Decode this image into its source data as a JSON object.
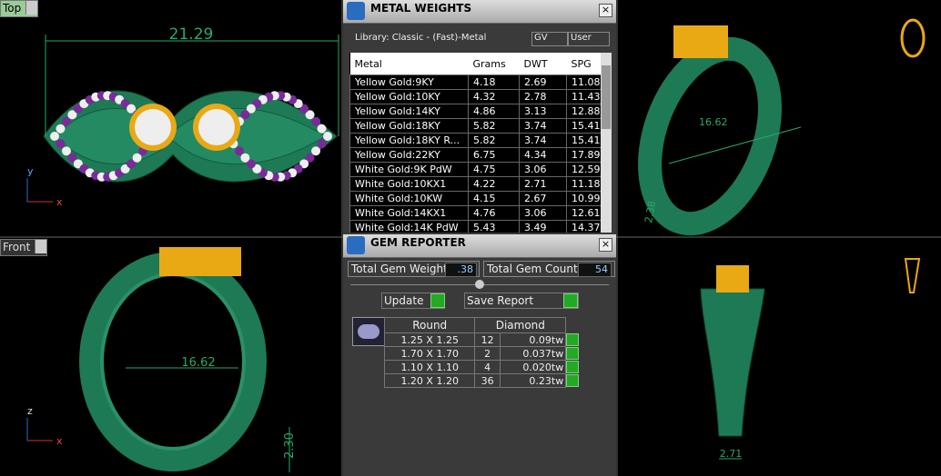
{
  "viewports": {
    "top_label": "Top",
    "front_label": "Front",
    "top_dimension": "21.29",
    "front_dimension": "16.62",
    "front_height": "2.30",
    "perspective_dimension": "16.62",
    "perspective_height": "2.38",
    "side_dimension": "2.71",
    "axis_y": "y",
    "axis_x": "x",
    "axis_z": "z"
  },
  "metal_weights": {
    "title": "METAL WEIGHTS",
    "library": "Library: Classic - (Fast)-Metal",
    "toggles": [
      "GV",
      "User"
    ],
    "columns": [
      "Metal",
      "Grams",
      "DWT",
      "SPG"
    ],
    "rows": [
      [
        "Yellow Gold:9KY",
        "4.18",
        "2.69",
        "11.08"
      ],
      [
        "Yellow Gold:10KY",
        "4.32",
        "2.78",
        "11.43"
      ],
      [
        "Yellow Gold:14KY",
        "4.86",
        "3.13",
        "12.88"
      ],
      [
        "Yellow Gold:18KY",
        "5.82",
        "3.74",
        "15.41"
      ],
      [
        "Yellow Gold:18KY R...",
        "5.82",
        "3.74",
        "15.41"
      ],
      [
        "Yellow Gold:22KY",
        "6.75",
        "4.34",
        "17.89"
      ],
      [
        "White Gold:9K PdW",
        "4.75",
        "3.06",
        "12.59"
      ],
      [
        "White Gold:10KX1",
        "4.22",
        "2.71",
        "11.18"
      ],
      [
        "White Gold:10KW",
        "4.15",
        "2.67",
        "10.99"
      ],
      [
        "White Gold:14KX1",
        "4.76",
        "3.06",
        "12.61"
      ],
      [
        "White Gold:14K PdW",
        "5.43",
        "3.49",
        "14.37"
      ]
    ]
  },
  "gem_reporter": {
    "title": "GEM REPORTER",
    "total_weight_label": "Total Gem Weight",
    "total_weight": ".38",
    "total_count_label": "Total Gem Count",
    "total_count": "54",
    "update": "Update",
    "save_report": "Save Report",
    "shape_header": "Round",
    "type_header": "Diamond",
    "rows": [
      [
        "1.25 X 1.25",
        "12",
        "0.09tw"
      ],
      [
        "1.70 X 1.70",
        "2",
        "0.037tw"
      ],
      [
        "1.10 X 1.10",
        "4",
        "0.020tw"
      ],
      [
        "1.20 X 1.20",
        "36",
        "0.23tw"
      ]
    ]
  }
}
